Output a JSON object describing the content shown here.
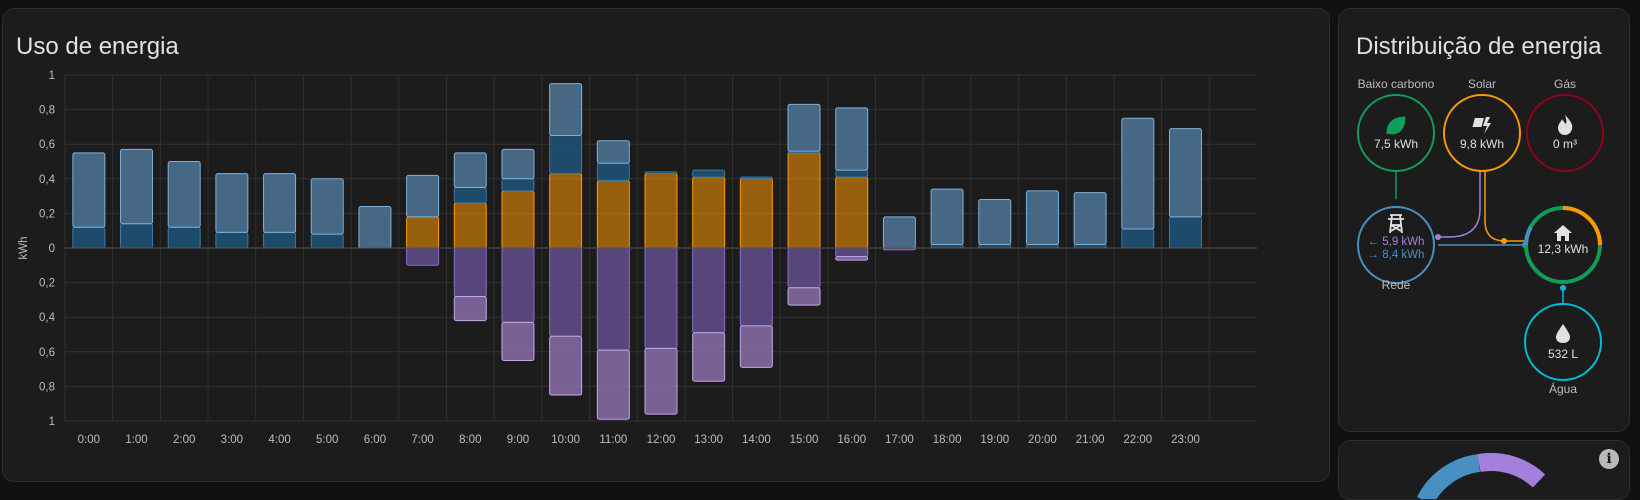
{
  "usage": {
    "title": "Uso de energia",
    "chart_data": {
      "type": "bar",
      "title": "",
      "ylabel": "kWh",
      "y_tick_labels_top": [
        "1",
        "0,8",
        "0,6",
        "0,4",
        "0,2",
        "0"
      ],
      "y_tick_labels_bottom": [
        "0,2",
        "0,4",
        "0,6",
        "0,8",
        "1"
      ],
      "ylim": [
        -1,
        1
      ],
      "grid": true,
      "categories": [
        "0:00",
        "1:00",
        "2:00",
        "3:00",
        "4:00",
        "5:00",
        "6:00",
        "7:00",
        "8:00",
        "9:00",
        "10:00",
        "11:00",
        "12:00",
        "13:00",
        "14:00",
        "15:00",
        "16:00",
        "17:00",
        "18:00",
        "19:00",
        "20:00",
        "21:00",
        "22:00",
        "23:00"
      ],
      "series": [
        {
          "key": "solar",
          "values": [
            0,
            0,
            0,
            0,
            0,
            0,
            0,
            0.18,
            0.26,
            0.33,
            0.43,
            0.39,
            0.43,
            0.41,
            0.4,
            0.55,
            0.41,
            0,
            0,
            0,
            0,
            0,
            0,
            0
          ],
          "color": "#ff9800"
        },
        {
          "key": "grid_low_carbon",
          "values": [
            0.12,
            0.14,
            0.12,
            0.09,
            0.09,
            0.08,
            0,
            0,
            0.09,
            0.07,
            0.22,
            0.1,
            0.01,
            0.04,
            0.01,
            0.01,
            0.04,
            0,
            0.02,
            0.02,
            0.02,
            0.02,
            0.11,
            0.18
          ],
          "color": "#1f5478"
        },
        {
          "key": "grid_import",
          "values": [
            0.43,
            0.43,
            0.38,
            0.34,
            0.34,
            0.32,
            0.24,
            0.24,
            0.2,
            0.17,
            0.3,
            0.13,
            0,
            0,
            0,
            0.27,
            0.36,
            0.18,
            0.32,
            0.26,
            0.31,
            0.3,
            0.64,
            0.51
          ],
          "color": "#4e7598"
        },
        {
          "key": "grid_export_from_solar",
          "values": [
            0,
            0,
            0,
            0,
            0,
            0,
            0,
            0.1,
            0.28,
            0.43,
            0.51,
            0.59,
            0.58,
            0.49,
            0.45,
            0.23,
            0.05,
            0.01,
            0,
            0,
            0,
            0,
            0,
            0
          ],
          "color": "#5d4b86"
        },
        {
          "key": "grid_export_from_battery",
          "values": [
            0,
            0,
            0,
            0,
            0,
            0,
            0,
            0,
            0.14,
            0.22,
            0.34,
            0.4,
            0.38,
            0.28,
            0.24,
            0.1,
            0.02,
            0,
            0,
            0,
            0,
            0,
            0,
            0
          ],
          "color": "#8a6da8"
        }
      ]
    }
  },
  "distribution": {
    "title": "Distribuição de energia",
    "nodes": {
      "low_carbon": {
        "label": "Baixo carbono",
        "value": "7,5 kWh",
        "color": "#0f9d58",
        "icon": "leaf-icon"
      },
      "solar": {
        "label": "Solar",
        "value": "9,8 kWh",
        "color": "#ff9800",
        "icon": "solar-power-icon"
      },
      "gas": {
        "label": "Gás",
        "value": "0 m³",
        "color": "#8e021b",
        "icon": "fire-icon"
      },
      "grid": {
        "label": "Rede",
        "value_in": "← 5,9 kWh",
        "value_out": "→ 8,4 kWh",
        "color": "#488fc2",
        "color_in": "#a280db",
        "icon": "transmission-tower-icon"
      },
      "home": {
        "label": "",
        "value": "12,3 kWh",
        "color": "#0f9d58",
        "icon": "home-icon"
      },
      "water": {
        "label": "Água",
        "value": "532 L",
        "color": "#00bcd4",
        "icon": "water-icon"
      }
    }
  }
}
